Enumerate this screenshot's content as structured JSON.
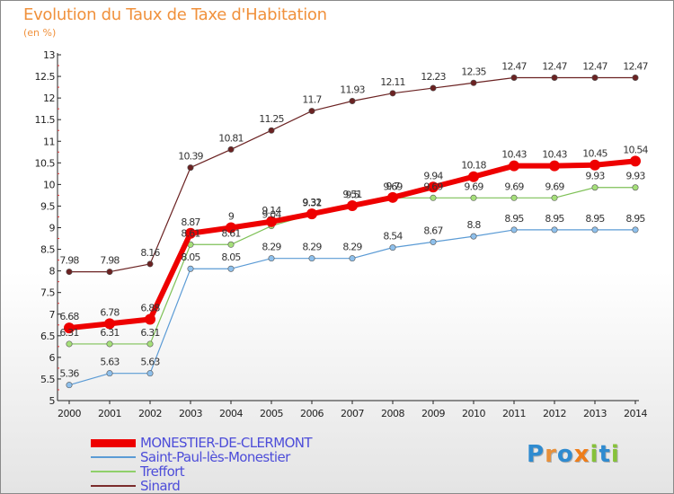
{
  "title": "Evolution du Taux de Taxe d'Habitation",
  "units": "(en %)",
  "brand": {
    "letters": [
      {
        "ch": "P",
        "color": "#2f8bd0"
      },
      {
        "ch": "r",
        "color": "#e8903a"
      },
      {
        "ch": "o",
        "color": "#2f8bd0"
      },
      {
        "ch": "x",
        "color": "#ee7d1a"
      },
      {
        "ch": "i",
        "color": "#86c23a"
      },
      {
        "ch": "t",
        "color": "#2f8bd0"
      },
      {
        "ch": "i",
        "color": "#86c23a"
      }
    ]
  },
  "chart_data": {
    "type": "line",
    "title": "Evolution du Taux de Taxe d'Habitation",
    "ylabel": "(en %)",
    "x": [
      "2000",
      "2001",
      "2002",
      "2003",
      "2004",
      "2005",
      "2006",
      "2007",
      "2008",
      "2009",
      "2010",
      "2011",
      "2012",
      "2013",
      "2014"
    ],
    "ylim": [
      5,
      13
    ],
    "yticks": [
      "5",
      "5.5",
      "6",
      "6.5",
      "7",
      "7.5",
      "8",
      "8.5",
      "9",
      "9.5",
      "10",
      "10.5",
      "11",
      "11.5",
      "12",
      "12.5",
      "13"
    ],
    "grid": false,
    "legend": "bottom-left",
    "series": [
      {
        "name": "MONESTIER-DE-CLERMONT",
        "color": "#ee0000",
        "values": [
          6.68,
          6.78,
          6.88,
          8.87,
          9,
          9.14,
          9.32,
          9.51,
          9.7,
          9.94,
          10.18,
          10.43,
          10.43,
          10.45,
          10.54
        ],
        "labels": [
          "6.68",
          "6.78",
          "6.88",
          "8.87",
          "9",
          "9.14",
          "9.32",
          "9.51",
          "9.7",
          "9.94",
          "10.18",
          "10.43",
          "10.43",
          "10.45",
          "10.54"
        ]
      },
      {
        "name": "Saint-Paul-lès-Monestier",
        "color": "#5b9bd5",
        "values": [
          5.36,
          5.63,
          5.63,
          8.05,
          8.05,
          8.29,
          8.29,
          8.29,
          8.54,
          8.67,
          8.8,
          8.95,
          8.95,
          8.95,
          8.95
        ],
        "labels": [
          "5.36",
          "5.63",
          "5.63",
          "8.05",
          "8.05",
          "8.29",
          "8.29",
          "8.29",
          "8.54",
          "8.67",
          "8.8",
          "8.95",
          "8.95",
          "8.95",
          "8.95"
        ]
      },
      {
        "name": "Treffort",
        "color": "#8fd06a",
        "values": [
          6.31,
          6.31,
          6.31,
          8.61,
          8.61,
          9.04,
          9.31,
          9.5,
          9.69,
          9.69,
          9.69,
          9.69,
          9.69,
          9.93,
          9.93
        ],
        "labels": [
          "6.31",
          "6.31",
          "6.31",
          "8.61",
          "8.61",
          "9.04",
          "9.31",
          "9.5",
          "9.69",
          "9.69",
          "9.69",
          "9.69",
          "9.69",
          "9.93",
          "9.93"
        ]
      },
      {
        "name": "Sinard",
        "color": "#7b2c2c",
        "values": [
          7.98,
          7.98,
          8.16,
          10.39,
          10.81,
          11.25,
          11.7,
          11.93,
          12.11,
          12.23,
          12.35,
          12.47,
          12.47,
          12.47,
          12.47
        ],
        "labels": [
          "7.98",
          "7.98",
          "8.16",
          "10.39",
          "10.81",
          "11.25",
          "11.7",
          "11.93",
          "12.11",
          "12.23",
          "12.35",
          "12.47",
          "12.47",
          "12.47",
          "12.47"
        ]
      }
    ]
  }
}
